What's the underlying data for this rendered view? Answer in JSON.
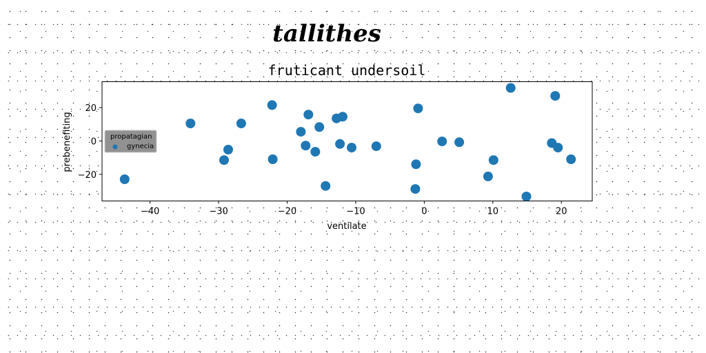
{
  "chart_data": {
    "type": "scatter",
    "suptitle": "tallithes",
    "title": "fruticant undersoil",
    "xlabel": "ventilate",
    "ylabel": "prebenefiting",
    "xlim": [
      -47,
      24.5
    ],
    "ylim": [
      -36,
      35.5
    ],
    "xticks": [
      -40,
      -30,
      -20,
      -10,
      0,
      10,
      20
    ],
    "yticks": [
      -20,
      0,
      20
    ],
    "grid": false,
    "legend": {
      "title": "propatagian",
      "placement": "center-left"
    },
    "series": [
      {
        "name": "gynecia",
        "color": "#1f77b4",
        "points": [
          [
            -43.7,
            -23
          ],
          [
            -34.1,
            10.5
          ],
          [
            -29.2,
            -11.5
          ],
          [
            -28.6,
            -5.2
          ],
          [
            -26.7,
            10.5
          ],
          [
            -22.2,
            21.5
          ],
          [
            -22.1,
            -11
          ],
          [
            -18,
            5.5
          ],
          [
            -17.3,
            -2.8
          ],
          [
            -16.9,
            15.8
          ],
          [
            -15.9,
            -6.5
          ],
          [
            -15.3,
            8.3
          ],
          [
            -14.4,
            -27
          ],
          [
            -12.8,
            13.5
          ],
          [
            -12.3,
            -1.8
          ],
          [
            -11.9,
            14.5
          ],
          [
            -10.6,
            -4
          ],
          [
            -7,
            -3.2
          ],
          [
            -1.3,
            -28.8
          ],
          [
            -1.2,
            -14
          ],
          [
            -0.9,
            19.5
          ],
          [
            2.6,
            -0.3
          ],
          [
            5.1,
            -0.8
          ],
          [
            9.3,
            -21.3
          ],
          [
            10.1,
            -11.5
          ],
          [
            12.6,
            31.8
          ],
          [
            14.9,
            -33.3
          ],
          [
            18.6,
            -1.3
          ],
          [
            19.1,
            27
          ],
          [
            19.5,
            -4
          ],
          [
            21.4,
            -11
          ]
        ]
      }
    ]
  }
}
